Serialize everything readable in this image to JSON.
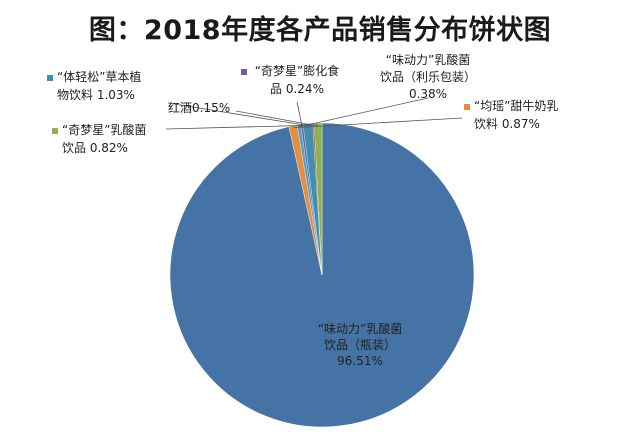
{
  "chart_data": {
    "type": "pie",
    "title": "图：2018年度各产品销售分布饼状图",
    "legend": "none",
    "slices": [
      {
        "lines": [
          "“味动力”乳酸菌",
          "饮品（瓶装）",
          "96.51%"
        ],
        "value": 96.51,
        "color": "#4573a6"
      },
      {
        "lines": [
          "“均瑶”甜牛奶乳",
          "饮料 0.87%"
        ],
        "value": 0.87,
        "color": "#e88c3e"
      },
      {
        "lines": [
          "“味动力”乳酸菌",
          "饮品（利乐包装）",
          "0.38%"
        ],
        "value": 0.38,
        "color": "#4ba6c2"
      },
      {
        "lines": [
          "“奇梦星”膨化食",
          "品 0.24%"
        ],
        "value": 0.24,
        "color": "#7b5a9e"
      },
      {
        "lines": [
          "“体轻松”草本植",
          "物饮料 1.03%"
        ],
        "value": 1.03,
        "color": "#3e8fb0"
      },
      {
        "lines": [
          "红酒0.15%"
        ],
        "value": 0.15,
        "color": "#b13d3b"
      },
      {
        "lines": [
          "“奇梦星”乳酸菌",
          "饮品 0.82%"
        ],
        "value": 0.82,
        "color": "#8fb24f"
      }
    ]
  }
}
